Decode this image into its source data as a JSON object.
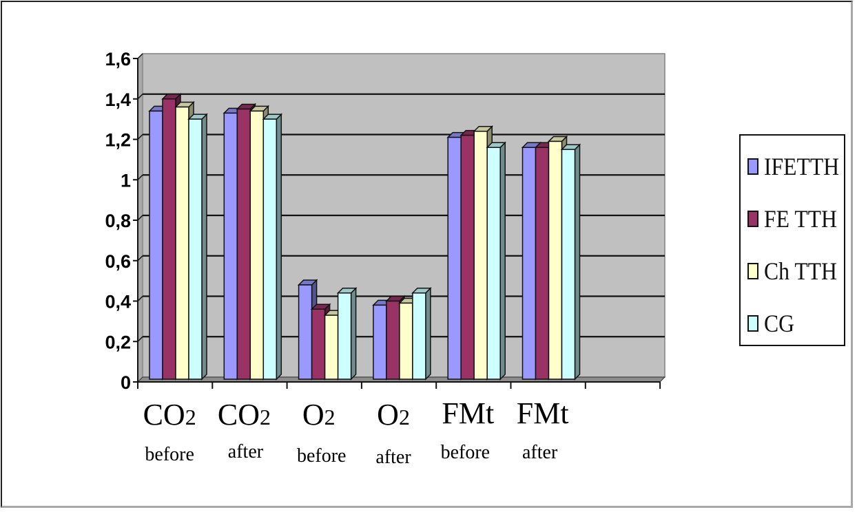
{
  "chart_data": {
    "type": "bar",
    "style": "3d-clustered-column",
    "title": "",
    "xlabel": "",
    "ylabel": "",
    "ylim": [
      0,
      1.6
    ],
    "yticks": [
      "0",
      "0,2",
      "0,4",
      "0,6",
      "0,8",
      "1",
      "1,2",
      "1,4",
      "1,6"
    ],
    "grid": true,
    "legend_position": "right",
    "categories": [
      {
        "main": "CO2",
        "sub": "before"
      },
      {
        "main": "CO2",
        "sub": "after"
      },
      {
        "main": "O2",
        "sub": "before"
      },
      {
        "main": "O2",
        "sub": "after"
      },
      {
        "main": "FMt",
        "sub": "before"
      },
      {
        "main": "FMt",
        "sub": "after"
      }
    ],
    "series": [
      {
        "name": "IFETTH",
        "color": "#9999FF",
        "values": [
          1.34,
          1.33,
          0.48,
          0.38,
          1.21,
          1.16
        ]
      },
      {
        "name": "FE TTH",
        "color": "#993366",
        "values": [
          1.4,
          1.35,
          0.36,
          0.4,
          1.22,
          1.16
        ]
      },
      {
        "name": "Ch TTH",
        "color": "#FFFFCC",
        "values": [
          1.36,
          1.34,
          0.33,
          0.39,
          1.24,
          1.19
        ]
      },
      {
        "name": "CG",
        "color": "#CCFFFF",
        "values": [
          1.3,
          1.3,
          0.44,
          0.44,
          1.16,
          1.15
        ]
      }
    ],
    "plot_background": "#C0C0C0"
  },
  "legend": {
    "items": [
      {
        "label": "IFETTH",
        "color": "#9999FF"
      },
      {
        "label": "FE TTH",
        "color": "#993366"
      },
      {
        "label": "Ch TTH",
        "color": "#FFFFCC"
      },
      {
        "label": "CG",
        "color": "#CCFFFF"
      }
    ]
  }
}
